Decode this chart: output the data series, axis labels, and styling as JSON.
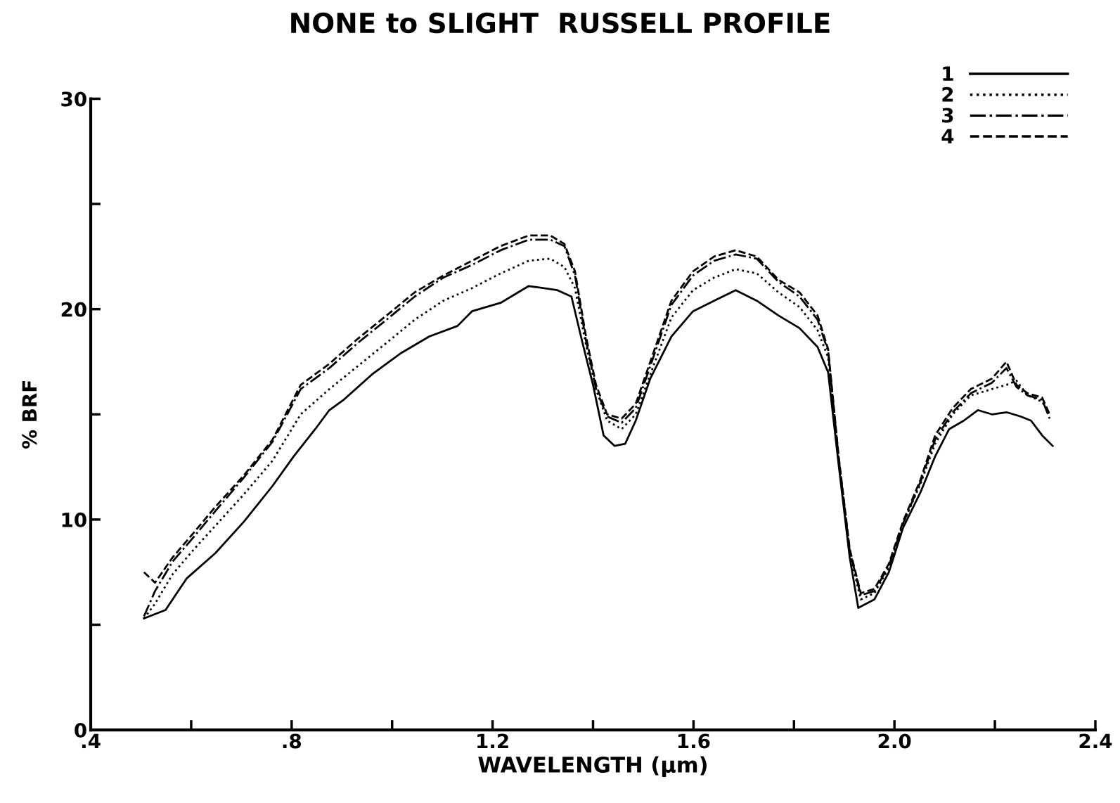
{
  "chart_data": {
    "type": "line",
    "title": "NONE to SLIGHT  RUSSELL PROFILE",
    "xlabel": "WAVELENGTH (µm)",
    "ylabel": "% BRF",
    "xlim": [
      0.4,
      2.4
    ],
    "xticks": [
      {
        "value": 0.4,
        "label": ".4"
      },
      {
        "value": 0.6,
        "label": null
      },
      {
        "value": 0.8,
        "label": ".8"
      },
      {
        "value": 1.0,
        "label": null
      },
      {
        "value": 1.2,
        "label": "1.2"
      },
      {
        "value": 1.4,
        "label": null
      },
      {
        "value": 1.6,
        "label": "1.6"
      },
      {
        "value": 1.8,
        "label": null
      },
      {
        "value": 2.0,
        "label": "2.0"
      },
      {
        "value": 2.2,
        "label": null
      },
      {
        "value": 2.4,
        "label": "2.4"
      }
    ],
    "ylim": [
      0,
      30
    ],
    "yticks": [
      0,
      {
        "value": 5,
        "label": null
      },
      10,
      {
        "value": 15,
        "label": null
      },
      20,
      {
        "value": 25,
        "label": null
      },
      30
    ],
    "grid": false,
    "legend": "top right",
    "marker": "none",
    "series": [
      {
        "name": "1",
        "color": "#000000",
        "line_style": "solid",
        "x": [
          0.506,
          0.549,
          0.591,
          0.648,
          0.705,
          0.762,
          0.804,
          0.847,
          0.875,
          0.904,
          0.96,
          1.017,
          1.074,
          1.13,
          1.159,
          1.216,
          1.272,
          1.329,
          1.357,
          1.379,
          1.4,
          1.421,
          1.443,
          1.464,
          1.485,
          1.514,
          1.556,
          1.599,
          1.641,
          1.684,
          1.726,
          1.769,
          1.811,
          1.847,
          1.868,
          1.889,
          1.911,
          1.928,
          1.96,
          1.989,
          2.017,
          2.052,
          2.081,
          2.109,
          2.138,
          2.166,
          2.194,
          2.223,
          2.251,
          2.272,
          2.294,
          2.315
        ],
        "values": [
          5.3,
          5.7,
          7.2,
          8.4,
          9.9,
          11.6,
          13.0,
          14.3,
          15.2,
          15.7,
          16.9,
          17.9,
          18.7,
          19.2,
          19.9,
          20.3,
          21.1,
          20.9,
          20.6,
          18.4,
          16.4,
          14.0,
          13.5,
          13.6,
          14.7,
          16.7,
          18.7,
          19.9,
          20.4,
          20.9,
          20.4,
          19.7,
          19.1,
          18.2,
          17.0,
          12.6,
          8.2,
          5.8,
          6.2,
          7.5,
          9.6,
          11.3,
          13.0,
          14.3,
          14.7,
          15.2,
          15.0,
          15.1,
          14.9,
          14.7,
          14.0,
          13.5
        ]
      },
      {
        "name": "2",
        "color": "#000000",
        "line_style": "dotted",
        "x": [
          0.506,
          0.528,
          0.563,
          0.606,
          0.648,
          0.705,
          0.762,
          0.818,
          0.875,
          0.932,
          0.989,
          1.045,
          1.102,
          1.159,
          1.216,
          1.272,
          1.315,
          1.343,
          1.364,
          1.386,
          1.406,
          1.428,
          1.457,
          1.485,
          1.514,
          1.556,
          1.599,
          1.641,
          1.684,
          1.726,
          1.769,
          1.811,
          1.847,
          1.868,
          1.889,
          1.911,
          1.933,
          1.96,
          1.989,
          2.017,
          2.052,
          2.081,
          2.116,
          2.152,
          2.194,
          2.223,
          2.243,
          2.265,
          2.294,
          2.309
        ],
        "values": [
          5.3,
          6.0,
          7.4,
          8.6,
          9.7,
          11.2,
          12.8,
          15.0,
          16.2,
          17.3,
          18.4,
          19.5,
          20.4,
          21.0,
          21.7,
          22.3,
          22.4,
          22.0,
          21.0,
          18.3,
          16.2,
          14.7,
          14.3,
          15.0,
          16.9,
          19.6,
          20.9,
          21.5,
          21.9,
          21.7,
          20.8,
          20.1,
          19.0,
          17.7,
          12.8,
          8.4,
          6.2,
          6.5,
          7.7,
          9.8,
          11.7,
          13.6,
          15.0,
          15.9,
          16.2,
          16.4,
          16.6,
          15.9,
          15.6,
          15.0
        ]
      },
      {
        "name": "3",
        "color": "#000000",
        "line_style": "dashdot",
        "x": [
          0.506,
          0.528,
          0.563,
          0.606,
          0.648,
          0.705,
          0.762,
          0.818,
          0.875,
          0.932,
          0.989,
          1.045,
          1.102,
          1.159,
          1.216,
          1.272,
          1.315,
          1.343,
          1.364,
          1.386,
          1.406,
          1.428,
          1.457,
          1.485,
          1.514,
          1.556,
          1.599,
          1.641,
          1.684,
          1.726,
          1.769,
          1.811,
          1.847,
          1.868,
          1.889,
          1.911,
          1.933,
          1.96,
          1.989,
          2.017,
          2.052,
          2.081,
          2.116,
          2.152,
          2.194,
          2.223,
          2.243,
          2.265,
          2.294,
          2.309
        ],
        "values": [
          5.4,
          6.6,
          8.0,
          9.2,
          10.4,
          12.0,
          13.7,
          16.2,
          17.2,
          18.4,
          19.5,
          20.6,
          21.5,
          22.1,
          22.8,
          23.3,
          23.3,
          23.0,
          21.6,
          18.5,
          16.2,
          14.9,
          14.6,
          15.3,
          17.3,
          20.2,
          21.6,
          22.3,
          22.6,
          22.4,
          21.3,
          20.6,
          19.5,
          18.0,
          12.9,
          8.5,
          6.4,
          6.6,
          7.8,
          9.8,
          11.8,
          13.8,
          15.1,
          16.0,
          16.5,
          17.2,
          16.3,
          15.9,
          15.7,
          14.8
        ]
      },
      {
        "name": "4",
        "color": "#000000",
        "line_style": "dashed",
        "x": [
          0.506,
          0.528,
          0.563,
          0.606,
          0.648,
          0.705,
          0.762,
          0.818,
          0.875,
          0.932,
          0.989,
          1.045,
          1.102,
          1.159,
          1.216,
          1.272,
          1.315,
          1.343,
          1.364,
          1.386,
          1.406,
          1.428,
          1.457,
          1.485,
          1.514,
          1.556,
          1.599,
          1.641,
          1.684,
          1.726,
          1.769,
          1.811,
          1.847,
          1.868,
          1.889,
          1.911,
          1.933,
          1.96,
          1.989,
          2.017,
          2.052,
          2.081,
          2.116,
          2.152,
          2.194,
          2.223,
          2.243,
          2.265,
          2.294,
          2.309
        ],
        "values": [
          7.5,
          7.0,
          8.2,
          9.4,
          10.6,
          12.1,
          13.8,
          16.4,
          17.4,
          18.6,
          19.7,
          20.8,
          21.6,
          22.3,
          23.0,
          23.5,
          23.5,
          23.1,
          21.8,
          18.7,
          16.4,
          15.0,
          14.8,
          15.5,
          17.5,
          20.4,
          21.8,
          22.5,
          22.8,
          22.5,
          21.4,
          20.8,
          19.7,
          18.1,
          13.0,
          8.6,
          6.5,
          6.7,
          7.9,
          9.9,
          11.9,
          14.0,
          15.3,
          16.2,
          16.7,
          17.5,
          16.4,
          16.0,
          15.8,
          15.0
        ]
      }
    ]
  }
}
